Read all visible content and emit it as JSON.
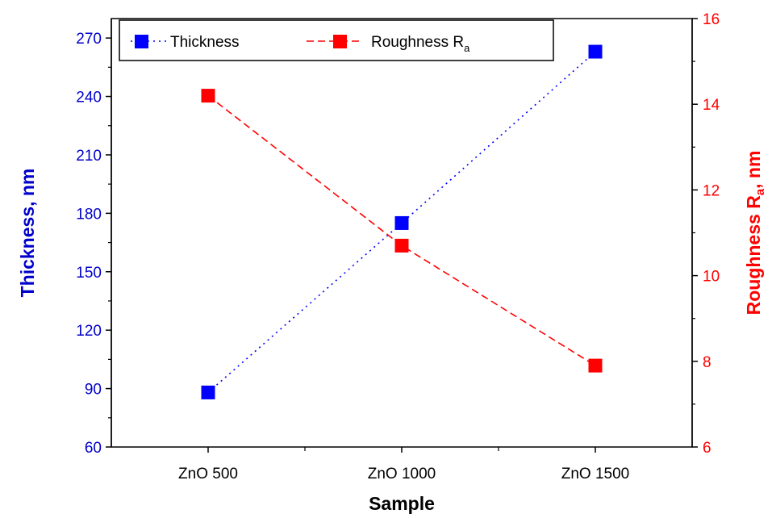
{
  "chart_data": {
    "type": "line",
    "categories": [
      "ZnO 500",
      "ZnO 1000",
      "ZnO 1500"
    ],
    "xlabel": "Sample",
    "series": [
      {
        "name": "Thickness",
        "axis": "left",
        "values": [
          88,
          175,
          263
        ],
        "color": "#0000ff",
        "line_style": "dotted",
        "marker": "square"
      },
      {
        "name": "Roughness R",
        "name_subscript": "a",
        "axis": "right",
        "values": [
          14.2,
          10.7,
          7.9
        ],
        "color": "#ff0000",
        "line_style": "dashed",
        "marker": "square"
      }
    ],
    "y_left": {
      "label": "Thickness, nm",
      "ylim": [
        60,
        280
      ],
      "ticks": [
        60,
        90,
        120,
        150,
        180,
        210,
        240,
        270
      ],
      "color": "#0000cc"
    },
    "y_right": {
      "label": "Roughness R",
      "label_subscript": "a",
      "label_suffix": ", nm",
      "ylim": [
        6,
        16
      ],
      "ticks": [
        6,
        8,
        10,
        12,
        14,
        16
      ],
      "color": "#ff0000"
    },
    "grid": false,
    "legend_position": "top"
  }
}
